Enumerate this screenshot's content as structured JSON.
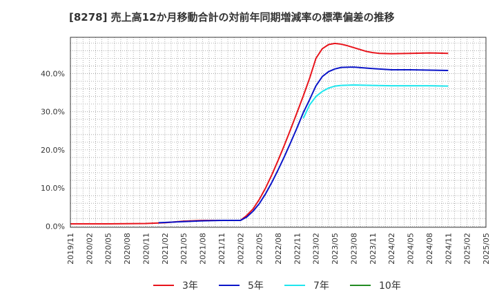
{
  "chart_data": {
    "type": "line",
    "title": "[8278]  売上高12か月移動合計の対前年同期増減率の標準偏差の推移",
    "x_ticks": [
      "2019/11",
      "2020/02",
      "2020/05",
      "2020/08",
      "2020/11",
      "2021/02",
      "2021/05",
      "2021/08",
      "2021/11",
      "2022/02",
      "2022/05",
      "2022/08",
      "2022/11",
      "2023/02",
      "2023/05",
      "2023/08",
      "2023/11",
      "2024/02",
      "2024/05",
      "2024/08",
      "2024/11",
      "2025/02",
      "2025/05"
    ],
    "y_ticks": [
      "0.0%",
      "10.0%",
      "20.0%",
      "30.0%",
      "40.0%"
    ],
    "ylim": [
      -0.3,
      49.5
    ],
    "xlim": [
      "2019/11",
      "2025/05"
    ],
    "grid": true,
    "legend_position": "bottom",
    "series": [
      {
        "name": "3年",
        "color": "#e8131b",
        "points": [
          [
            "2019/11",
            0.6
          ],
          [
            "2020/05",
            0.6
          ],
          [
            "2020/11",
            0.7
          ],
          [
            "2021/02",
            0.9
          ],
          [
            "2021/05",
            1.3
          ],
          [
            "2021/08",
            1.5
          ],
          [
            "2021/11",
            1.5
          ],
          [
            "2022/02",
            1.5
          ],
          [
            "2022/03",
            2.8
          ],
          [
            "2022/04",
            4.5
          ],
          [
            "2022/05",
            7.0
          ],
          [
            "2022/06",
            10.0
          ],
          [
            "2022/07",
            13.5
          ],
          [
            "2022/08",
            17.3
          ],
          [
            "2022/09",
            21.3
          ],
          [
            "2022/10",
            25.5
          ],
          [
            "2022/11",
            29.8
          ],
          [
            "2022/12",
            34.2
          ],
          [
            "2023/01",
            38.8
          ],
          [
            "2023/02",
            44.0
          ],
          [
            "2023/03",
            46.5
          ],
          [
            "2023/04",
            47.6
          ],
          [
            "2023/05",
            47.9
          ],
          [
            "2023/06",
            47.7
          ],
          [
            "2023/07",
            47.3
          ],
          [
            "2023/08",
            46.8
          ],
          [
            "2023/09",
            46.3
          ],
          [
            "2023/10",
            45.8
          ],
          [
            "2023/11",
            45.5
          ],
          [
            "2023/12",
            45.3
          ],
          [
            "2024/02",
            45.2
          ],
          [
            "2024/05",
            45.3
          ],
          [
            "2024/08",
            45.4
          ],
          [
            "2024/11",
            45.3
          ]
        ]
      },
      {
        "name": "5年",
        "color": "#0a14c8",
        "points": [
          [
            "2021/01",
            0.9
          ],
          [
            "2021/05",
            1.2
          ],
          [
            "2021/08",
            1.4
          ],
          [
            "2021/11",
            1.5
          ],
          [
            "2022/02",
            1.5
          ],
          [
            "2022/03",
            2.4
          ],
          [
            "2022/04",
            3.9
          ],
          [
            "2022/05",
            5.9
          ],
          [
            "2022/06",
            8.5
          ],
          [
            "2022/07",
            11.5
          ],
          [
            "2022/08",
            14.8
          ],
          [
            "2022/09",
            18.3
          ],
          [
            "2022/10",
            22.0
          ],
          [
            "2022/11",
            25.8
          ],
          [
            "2022/12",
            29.8
          ],
          [
            "2023/01",
            33.2
          ],
          [
            "2023/02",
            36.8
          ],
          [
            "2023/03",
            39.2
          ],
          [
            "2023/04",
            40.5
          ],
          [
            "2023/05",
            41.2
          ],
          [
            "2023/06",
            41.6
          ],
          [
            "2023/08",
            41.7
          ],
          [
            "2023/11",
            41.3
          ],
          [
            "2024/02",
            41.0
          ],
          [
            "2024/05",
            41.0
          ],
          [
            "2024/08",
            40.9
          ],
          [
            "2024/11",
            40.8
          ]
        ]
      },
      {
        "name": "7年",
        "color": "#1ee6ee",
        "points": [
          [
            "2022/12",
            28.3
          ],
          [
            "2023/01",
            31.8
          ],
          [
            "2023/02",
            34.0
          ],
          [
            "2023/03",
            35.3
          ],
          [
            "2023/04",
            36.2
          ],
          [
            "2023/05",
            36.7
          ],
          [
            "2023/06",
            36.9
          ],
          [
            "2023/08",
            37.0
          ],
          [
            "2023/11",
            36.9
          ],
          [
            "2024/02",
            36.8
          ],
          [
            "2024/05",
            36.8
          ],
          [
            "2024/08",
            36.8
          ],
          [
            "2024/11",
            36.7
          ]
        ]
      },
      {
        "name": "10年",
        "color": "#228b22",
        "points": []
      }
    ]
  }
}
